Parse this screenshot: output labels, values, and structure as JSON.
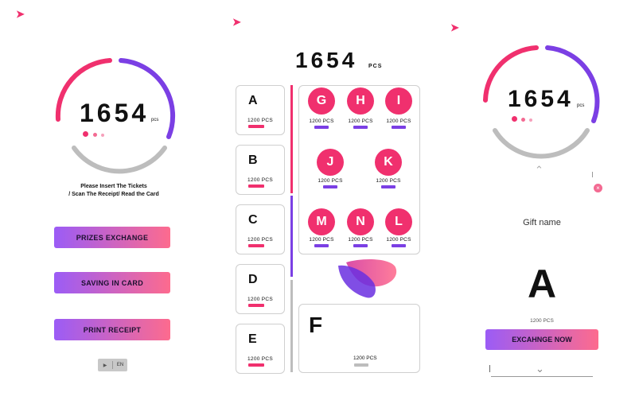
{
  "left": {
    "count": "1654",
    "unit": "pcs",
    "instruction_line1": "Please Insert The Tickets",
    "instruction_line2": "/ Scan The Receipt/ Read the Card",
    "buttons": [
      "PRIZES EXCHANGE",
      "SAVING IN CARD",
      "PRINT RECEIPT"
    ],
    "lang_play": "▶",
    "lang": "EN"
  },
  "middle": {
    "count": "1654",
    "unit": "PCS",
    "categories": [
      {
        "letter": "A",
        "pcs": "1200 PCS"
      },
      {
        "letter": "B",
        "pcs": "1200 PCS"
      },
      {
        "letter": "C",
        "pcs": "1200 PCS"
      },
      {
        "letter": "D",
        "pcs": "1200 PCS"
      },
      {
        "letter": "E",
        "pcs": "1200 PCS"
      }
    ],
    "items": [
      {
        "letter": "G",
        "pcs": "1200 PCS"
      },
      {
        "letter": "H",
        "pcs": "1200 PCS"
      },
      {
        "letter": "I",
        "pcs": "1200 PCS"
      },
      {
        "letter": "J",
        "pcs": "1200 PCS"
      },
      {
        "letter": "K",
        "pcs": "1200 PCS"
      },
      {
        "letter": "M",
        "pcs": "1200 PCS"
      },
      {
        "letter": "N",
        "pcs": "1200 PCS"
      },
      {
        "letter": "L",
        "pcs": "1200 PCS"
      }
    ],
    "f_card": {
      "letter": "F",
      "pcs": "1200 PCS"
    }
  },
  "right": {
    "count": "1654",
    "unit": "pcs",
    "gift_label": "Gift name",
    "gift_letter": "A",
    "gift_pcs": "1200 PCS",
    "exchange_button": "EXCAHNGE NOW"
  },
  "colors": {
    "pink": "#f0306e",
    "purple": "#7b3fe4",
    "gray": "#bdbdbd"
  }
}
